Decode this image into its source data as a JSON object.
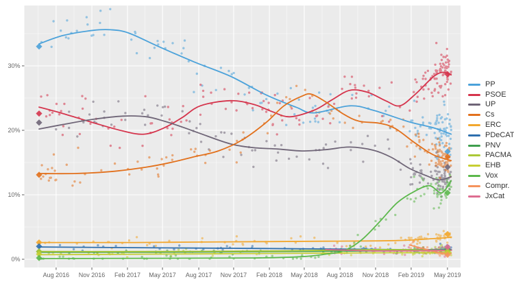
{
  "chart_data": {
    "type": "scatter",
    "title": "",
    "xlabel": "",
    "ylabel": "",
    "grid": true,
    "legend_position": "right",
    "panel_bg": "#ebebeb",
    "grid_color": "#ffffff",
    "tick_color": "#333333",
    "label_color": "#666666",
    "x_axis": {
      "unit": "months since Jun 2016",
      "ticks": [
        {
          "m": 1.43,
          "label": "Aug 2016"
        },
        {
          "m": 4.42,
          "label": "Nov 2016"
        },
        {
          "m": 7.4,
          "label": "Feb 2017"
        },
        {
          "m": 10.33,
          "label": "May 2017"
        },
        {
          "m": 13.37,
          "label": "Aug 2017"
        },
        {
          "m": 16.29,
          "label": "Nov 2017"
        },
        {
          "m": 19.28,
          "label": "Feb 2018"
        },
        {
          "m": 22.2,
          "label": "May 2018"
        },
        {
          "m": 25.19,
          "label": "Aug 2018"
        },
        {
          "m": 28.17,
          "label": "Nov 2018"
        },
        {
          "m": 31.15,
          "label": "Feb 2019"
        },
        {
          "m": 34.19,
          "label": "May 2019"
        }
      ]
    },
    "y_axis": {
      "major": [
        {
          "v": 0,
          "label": "0%"
        },
        {
          "v": 10,
          "label": "10%"
        },
        {
          "v": 20,
          "label": "20%"
        },
        {
          "v": 30,
          "label": "30%"
        }
      ],
      "minor": [
        5,
        15,
        25,
        35
      ],
      "range": [
        0,
        39
      ]
    },
    "marker_m": {
      "start": 0,
      "end": 34.2
    },
    "series": [
      {
        "name": "PP",
        "color": "#4ba2da",
        "scatter_sd": 1.7,
        "n_points": 150,
        "markers": {
          "start": 33.0,
          "end": 16.7
        },
        "trend": [
          [
            0,
            33.4
          ],
          [
            2,
            34.7
          ],
          [
            4.5,
            35.5
          ],
          [
            6,
            35.6
          ],
          [
            7.5,
            35.1
          ],
          [
            10,
            33.0
          ],
          [
            13,
            30.6
          ],
          [
            16,
            28.4
          ],
          [
            19,
            25.5
          ],
          [
            21.5,
            23.6
          ],
          [
            23,
            22.7
          ],
          [
            26,
            23.8
          ],
          [
            28,
            23.1
          ],
          [
            31,
            21.3
          ],
          [
            33,
            20.4
          ],
          [
            34.5,
            19.4
          ]
        ]
      },
      {
        "name": "PSOE",
        "color": "#d5344c",
        "scatter_sd": 1.8,
        "n_points": 180,
        "markers": {
          "start": 22.6,
          "end": 28.7
        },
        "trend": [
          [
            0,
            23.6
          ],
          [
            2,
            22.6
          ],
          [
            4.5,
            21.2
          ],
          [
            7,
            19.9
          ],
          [
            8.8,
            19.4
          ],
          [
            10.5,
            20.4
          ],
          [
            12,
            22.0
          ],
          [
            13.5,
            23.8
          ],
          [
            16,
            24.6
          ],
          [
            18,
            24.0
          ],
          [
            19.5,
            22.9
          ],
          [
            21,
            22.1
          ],
          [
            23,
            23.1
          ],
          [
            24.5,
            24.7
          ],
          [
            26,
            26.2
          ],
          [
            27.5,
            25.9
          ],
          [
            29,
            24.6
          ],
          [
            30.2,
            23.8
          ],
          [
            31.5,
            25.6
          ],
          [
            33,
            28.3
          ],
          [
            33.8,
            29.0
          ],
          [
            34.5,
            28.6
          ]
        ]
      },
      {
        "name": "UP",
        "color": "#6f6577",
        "scatter_sd": 1.5,
        "n_points": 150,
        "markers": {
          "start": 21.2,
          "end": 14.3
        },
        "trend": [
          [
            0,
            20.2
          ],
          [
            2,
            20.9
          ],
          [
            4.5,
            21.7
          ],
          [
            7,
            22.2
          ],
          [
            9,
            22.1
          ],
          [
            10.5,
            21.4
          ],
          [
            12,
            20.5
          ],
          [
            13.5,
            19.5
          ],
          [
            16,
            17.9
          ],
          [
            18,
            17.3
          ],
          [
            20,
            17.1
          ],
          [
            22,
            16.8
          ],
          [
            24,
            17.0
          ],
          [
            26,
            17.4
          ],
          [
            28,
            16.9
          ],
          [
            29.5,
            15.8
          ],
          [
            31,
            14.1
          ],
          [
            32.5,
            12.9
          ],
          [
            33.5,
            12.3
          ],
          [
            34.5,
            12.8
          ]
        ]
      },
      {
        "name": "Cs",
        "color": "#e2711d",
        "scatter_sd": 1.3,
        "n_points": 150,
        "markers": {
          "start": 13.1,
          "end": 15.9
        },
        "trend": [
          [
            0,
            13.3
          ],
          [
            3,
            13.3
          ],
          [
            6,
            13.6
          ],
          [
            9,
            14.3
          ],
          [
            11,
            15.0
          ],
          [
            13,
            15.9
          ],
          [
            15,
            16.8
          ],
          [
            17,
            18.5
          ],
          [
            19,
            21.2
          ],
          [
            20.5,
            23.8
          ],
          [
            22,
            25.3
          ],
          [
            22.8,
            25.6
          ],
          [
            24,
            24.4
          ],
          [
            25.5,
            22.5
          ],
          [
            26.8,
            21.4
          ],
          [
            28.5,
            21.1
          ],
          [
            29.8,
            20.3
          ],
          [
            31.5,
            18.0
          ],
          [
            33,
            16.2
          ],
          [
            34.5,
            15.3
          ]
        ]
      },
      {
        "name": "ERC",
        "color": "#f2a72e",
        "scatter_sd": 0.45,
        "n_points": 80,
        "markers": {
          "start": 2.6,
          "end": 3.9
        },
        "trend": [
          [
            0,
            2.6
          ],
          [
            8,
            2.6
          ],
          [
            16,
            2.7
          ],
          [
            24,
            2.8
          ],
          [
            30,
            2.9
          ],
          [
            33,
            3.2
          ],
          [
            34.5,
            3.4
          ]
        ]
      },
      {
        "name": "PDeCAT",
        "color": "#2e6fae",
        "scatter_sd": 0.3,
        "n_points": 55,
        "markers": {
          "start": 2.0,
          "end": null
        },
        "trend": [
          [
            0,
            1.9
          ],
          [
            8,
            1.8
          ],
          [
            16,
            1.7
          ],
          [
            24,
            1.6
          ],
          [
            30,
            1.5
          ],
          [
            34.5,
            1.5
          ]
        ]
      },
      {
        "name": "PNV",
        "color": "#3f9e4d",
        "scatter_sd": 0.25,
        "n_points": 55,
        "markers": {
          "start": 1.2,
          "end": 1.5
        },
        "trend": [
          [
            0,
            1.1
          ],
          [
            10,
            1.1
          ],
          [
            20,
            1.2
          ],
          [
            28,
            1.3
          ],
          [
            34.5,
            1.4
          ]
        ]
      },
      {
        "name": "PACMA",
        "color": "#abc837",
        "scatter_sd": 0.3,
        "n_points": 45,
        "markers": {
          "start": 1.2,
          "end": 1.3
        },
        "trend": [
          [
            0,
            1.2
          ],
          [
            10,
            1.2
          ],
          [
            20,
            1.3
          ],
          [
            28,
            1.5
          ],
          [
            34.5,
            1.4
          ]
        ]
      },
      {
        "name": "EHB",
        "color": "#c6ce33",
        "scatter_sd": 0.25,
        "n_points": 40,
        "markers": {
          "start": 0.8,
          "end": 1.0
        },
        "trend": [
          [
            0,
            0.7
          ],
          [
            10,
            0.8
          ],
          [
            20,
            0.9
          ],
          [
            28,
            1.0
          ],
          [
            34.5,
            1.0
          ]
        ]
      },
      {
        "name": "Vox",
        "color": "#5cb84c",
        "scatter_sd": 1.1,
        "n_points": 100,
        "markers": {
          "start": 0.2,
          "end": 10.3
        },
        "trend": [
          [
            0,
            0.1
          ],
          [
            10,
            0.15
          ],
          [
            18,
            0.2
          ],
          [
            22,
            0.4
          ],
          [
            24,
            0.8
          ],
          [
            25.5,
            1.3
          ],
          [
            27,
            3.0
          ],
          [
            28.5,
            5.8
          ],
          [
            30,
            8.8
          ],
          [
            31.5,
            10.6
          ],
          [
            32.7,
            11.4
          ],
          [
            33.7,
            10.3
          ],
          [
            34.5,
            12.2
          ]
        ]
      },
      {
        "name": "Compr.",
        "color": "#f5935c",
        "scatter_sd": 0.35,
        "n_points": 25,
        "markers": {
          "start": null,
          "end": 0.7
        },
        "trend": [
          [
            31,
            2.2
          ],
          [
            32.5,
            1.5
          ],
          [
            33.5,
            1.0
          ],
          [
            34.5,
            0.9
          ]
        ]
      },
      {
        "name": "JxCat",
        "color": "#dd6d90",
        "scatter_sd": 0.4,
        "n_points": 50,
        "markers": {
          "start": null,
          "end": 1.9
        },
        "trend": [
          [
            24,
            1.5
          ],
          [
            28,
            1.3
          ],
          [
            31,
            1.3
          ],
          [
            34.5,
            1.4
          ]
        ]
      }
    ]
  }
}
